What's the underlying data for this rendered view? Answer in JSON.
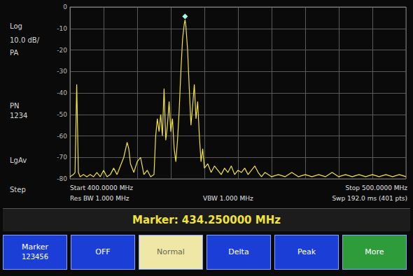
{
  "chart_data": {
    "type": "line",
    "color": "#f2e33a",
    "x": [
      400,
      401,
      401.5,
      402,
      402.5,
      403,
      404,
      405,
      406,
      407,
      408,
      409,
      410,
      411,
      412,
      413,
      414,
      415,
      416,
      417,
      417.5,
      418,
      419,
      420,
      421,
      421.5,
      422,
      423,
      424,
      425,
      425.5,
      426,
      426.5,
      427,
      427.5,
      428,
      428.5,
      429,
      429.5,
      430,
      430.5,
      431,
      431.5,
      432,
      432.5,
      433,
      433.5,
      434,
      434.25,
      434.5,
      435,
      435.5,
      436,
      436.5,
      437,
      437.5,
      438,
      438.5,
      439,
      439.5,
      440,
      441,
      442,
      443,
      444,
      445,
      446,
      447,
      448,
      449,
      450,
      451,
      452,
      453,
      454,
      455,
      456,
      457,
      458,
      459,
      460,
      462,
      464,
      466,
      468,
      470,
      472,
      474,
      476,
      478,
      480,
      482,
      484,
      486,
      488,
      490,
      492,
      494,
      496,
      498,
      500
    ],
    "values": [
      -79,
      -78,
      -77,
      -36,
      -77,
      -79,
      -78,
      -79,
      -78,
      -79,
      -77,
      -79,
      -76,
      -79,
      -78,
      -75,
      -78,
      -74,
      -70,
      -63,
      -66,
      -73,
      -77,
      -72,
      -70,
      -74,
      -78,
      -76,
      -79,
      -78,
      -60,
      -52,
      -58,
      -50,
      -60,
      -38,
      -62,
      -55,
      -44,
      -58,
      -52,
      -66,
      -72,
      -62,
      -48,
      -30,
      -15,
      -8,
      -6,
      -9,
      -20,
      -38,
      -55,
      -46,
      -36,
      -52,
      -44,
      -60,
      -72,
      -66,
      -75,
      -73,
      -77,
      -74,
      -76,
      -78,
      -75,
      -77,
      -74,
      -78,
      -76,
      -77,
      -75,
      -78,
      -76,
      -74,
      -77,
      -79,
      -77,
      -78,
      -79,
      -78,
      -79,
      -77,
      -79,
      -78,
      -79,
      -78,
      -79,
      -77,
      -79,
      -78,
      -79,
      -78,
      -79,
      -78,
      -79,
      -78,
      -79,
      -78,
      -79
    ],
    "xlim": [
      400,
      500
    ],
    "xticks": [
      400,
      410,
      420,
      430,
      440,
      450,
      460,
      470,
      480,
      490,
      500
    ],
    "ylim": [
      -80,
      0
    ],
    "yticks": [
      -80,
      -70,
      -60,
      -50,
      -40,
      -30,
      -20,
      -10,
      0
    ],
    "grid": true,
    "tick_labels": "y",
    "side_labels": [
      "Log",
      "10.0 dB/",
      "PA",
      "PN",
      "1234",
      "LgAv",
      "Step"
    ],
    "footer": {
      "start": "Start 400.0000 MHz",
      "stop": "Stop 500.0000 MHz",
      "res_bw": "Res BW 1.000 MHz",
      "vbw": "VBW 1.000 MHz",
      "sweep": "Swp 192.0 ms (401 pts)"
    },
    "marker_readout": "Marker: 434.250000 MHz",
    "softkeys": [
      {
        "label": "Marker",
        "sub": "123456"
      },
      {
        "label": "OFF"
      },
      {
        "label": "Normal"
      },
      {
        "label": "Delta"
      },
      {
        "label": "Peak"
      },
      {
        "label": "More"
      }
    ]
  }
}
